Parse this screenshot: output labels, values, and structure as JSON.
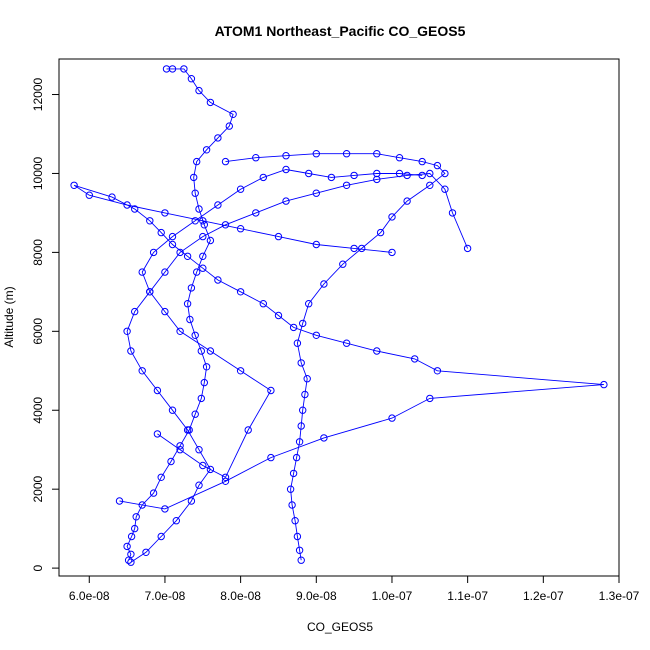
{
  "chart_data": {
    "type": "line",
    "title": "ATOM1 Northeast_Pacific CO_GEOS5",
    "xlabel": "CO_GEOS5",
    "ylabel": "Altitude (m)",
    "xlim": [
      5.6e-08,
      1.3e-07
    ],
    "ylim": [
      -200,
      12900
    ],
    "x_ticks": [
      6e-08,
      7e-08,
      8e-08,
      9e-08,
      1e-07,
      1.1e-07,
      1.2e-07,
      1.3e-07
    ],
    "x_tick_labels": [
      "6.0e-08",
      "7.0e-08",
      "8.0e-08",
      "9.0e-08",
      "1.0e-07",
      "1.1e-07",
      "1.2e-07",
      "1.3e-07"
    ],
    "y_ticks": [
      0,
      2000,
      4000,
      6000,
      8000,
      10000,
      12000
    ],
    "y_tick_labels": [
      "0",
      "2000",
      "4000",
      "6000",
      "8000",
      "10000",
      "12000"
    ],
    "grid": false,
    "series_color": "#0000ff",
    "series": [
      {
        "marker": "open-circle",
        "x": [
          6.52e-08,
          6.55e-08,
          6.5e-08,
          6.56e-08,
          6.6e-08,
          6.62e-08,
          6.7e-08,
          6.85e-08,
          6.95e-08,
          7.08e-08,
          7.2e-08,
          7.32e-08,
          7.4e-08,
          7.48e-08,
          7.52e-08,
          7.55e-08,
          7.48e-08,
          7.4e-08,
          7.33e-08,
          7.3e-08,
          7.35e-08,
          7.42e-08,
          7.5e-08,
          7.6e-08,
          7.52e-08,
          7.45e-08,
          7.4e-08,
          7.38e-08,
          7.42e-08,
          7.55e-08,
          7.7e-08,
          7.85e-08,
          7.9e-08,
          7.6e-08,
          7.45e-08,
          7.35e-08,
          7.25e-08,
          7.1e-08,
          7.02e-08
        ],
        "y": [
          200,
          350,
          550,
          800,
          1000,
          1300,
          1600,
          1900,
          2300,
          2700,
          3100,
          3500,
          3900,
          4300,
          4700,
          5100,
          5500,
          5900,
          6300,
          6700,
          7100,
          7500,
          7900,
          8300,
          8700,
          9100,
          9500,
          9900,
          10300,
          10600,
          10900,
          11200,
          11500,
          11800,
          12100,
          12400,
          12650,
          12650,
          12650
        ]
      },
      {
        "marker": "open-circle",
        "x": [
          6.55e-08,
          6.75e-08,
          6.95e-08,
          7.15e-08,
          7.35e-08,
          7.45e-08,
          7.6e-08,
          7.45e-08,
          7.3e-08,
          7.1e-08,
          6.9e-08,
          6.7e-08,
          6.55e-08,
          6.5e-08,
          6.6e-08,
          6.8e-08,
          7e-08,
          7.2e-08,
          7.5e-08,
          7.8e-08,
          8.2e-08,
          8.6e-08,
          9e-08,
          9.4e-08,
          9.8e-08,
          1.02e-07,
          1.05e-07,
          1.07e-07,
          1.08e-07,
          1.1e-07
        ],
        "y": [
          150,
          400,
          800,
          1200,
          1700,
          2100,
          2500,
          3000,
          3500,
          4000,
          4500,
          5000,
          5500,
          6000,
          6500,
          7000,
          7500,
          8000,
          8400,
          8700,
          9000,
          9300,
          9500,
          9700,
          9850,
          9950,
          10000,
          9600,
          9000,
          8100
        ]
      },
      {
        "marker": "open-circle",
        "x": [
          8.8e-08,
          8.78e-08,
          8.75e-08,
          8.72e-08,
          8.68e-08,
          8.66e-08,
          8.7e-08,
          8.74e-08,
          8.78e-08,
          8.8e-08,
          8.82e-08,
          8.85e-08,
          8.88e-08,
          8.8e-08,
          8.75e-08,
          8.82e-08,
          8.9e-08,
          9.1e-08,
          9.35e-08,
          9.6e-08,
          9.85e-08,
          1e-07,
          1.02e-07,
          1.05e-07,
          1.07e-07,
          1.06e-07,
          1.04e-07,
          1.01e-07,
          9.8e-08,
          9.4e-08,
          9e-08,
          8.6e-08,
          8.2e-08,
          7.8e-08
        ],
        "y": [
          200,
          450,
          800,
          1200,
          1600,
          2000,
          2400,
          2800,
          3200,
          3600,
          4000,
          4400,
          4800,
          5200,
          5700,
          6200,
          6700,
          7200,
          7700,
          8100,
          8500,
          8900,
          9300,
          9700,
          10000,
          10200,
          10300,
          10400,
          10500,
          10500,
          10500,
          10450,
          10400,
          10300
        ]
      },
      {
        "marker": "open-circle",
        "x": [
          6.4e-08,
          7e-08,
          7.8e-08,
          8.4e-08,
          9.1e-08,
          1e-07,
          1.05e-07,
          1.28e-07,
          1.06e-07,
          1.03e-07,
          9.8e-08,
          9.4e-08,
          9e-08,
          8.7e-08,
          8.5e-08,
          8.3e-08,
          8e-08,
          7.7e-08,
          7.5e-08,
          7.3e-08,
          7.1e-08,
          6.95e-08,
          6.8e-08,
          6.6e-08,
          6.3e-08,
          5.8e-08,
          6e-08,
          6.5e-08,
          7e-08,
          7.5e-08,
          8e-08,
          8.5e-08,
          9e-08,
          9.5e-08,
          1e-07
        ],
        "y": [
          1700,
          1500,
          2200,
          2800,
          3300,
          3800,
          4300,
          4650,
          5000,
          5300,
          5500,
          5700,
          5900,
          6100,
          6400,
          6700,
          7000,
          7300,
          7600,
          7900,
          8200,
          8500,
          8800,
          9100,
          9400,
          9700,
          9450,
          9200,
          9000,
          8800,
          8600,
          8400,
          8200,
          8100,
          8000
        ]
      },
      {
        "marker": "open-circle",
        "x": [
          6.9e-08,
          7.2e-08,
          7.5e-08,
          7.8e-08,
          8.1e-08,
          8.4e-08,
          8e-08,
          7.6e-08,
          7.2e-08,
          7e-08,
          6.8e-08,
          6.7e-08,
          6.85e-08,
          7.1e-08,
          7.4e-08,
          7.7e-08,
          8e-08,
          8.3e-08,
          8.6e-08,
          8.9e-08,
          9.2e-08,
          9.5e-08,
          9.8e-08,
          1.01e-07,
          1.04e-07
        ],
        "y": [
          3400,
          3000,
          2600,
          2300,
          3500,
          4500,
          5000,
          5500,
          6000,
          6500,
          7000,
          7500,
          8000,
          8400,
          8800,
          9200,
          9600,
          9900,
          10100,
          10000,
          9900,
          9950,
          10000,
          10000,
          9950
        ]
      }
    ]
  }
}
